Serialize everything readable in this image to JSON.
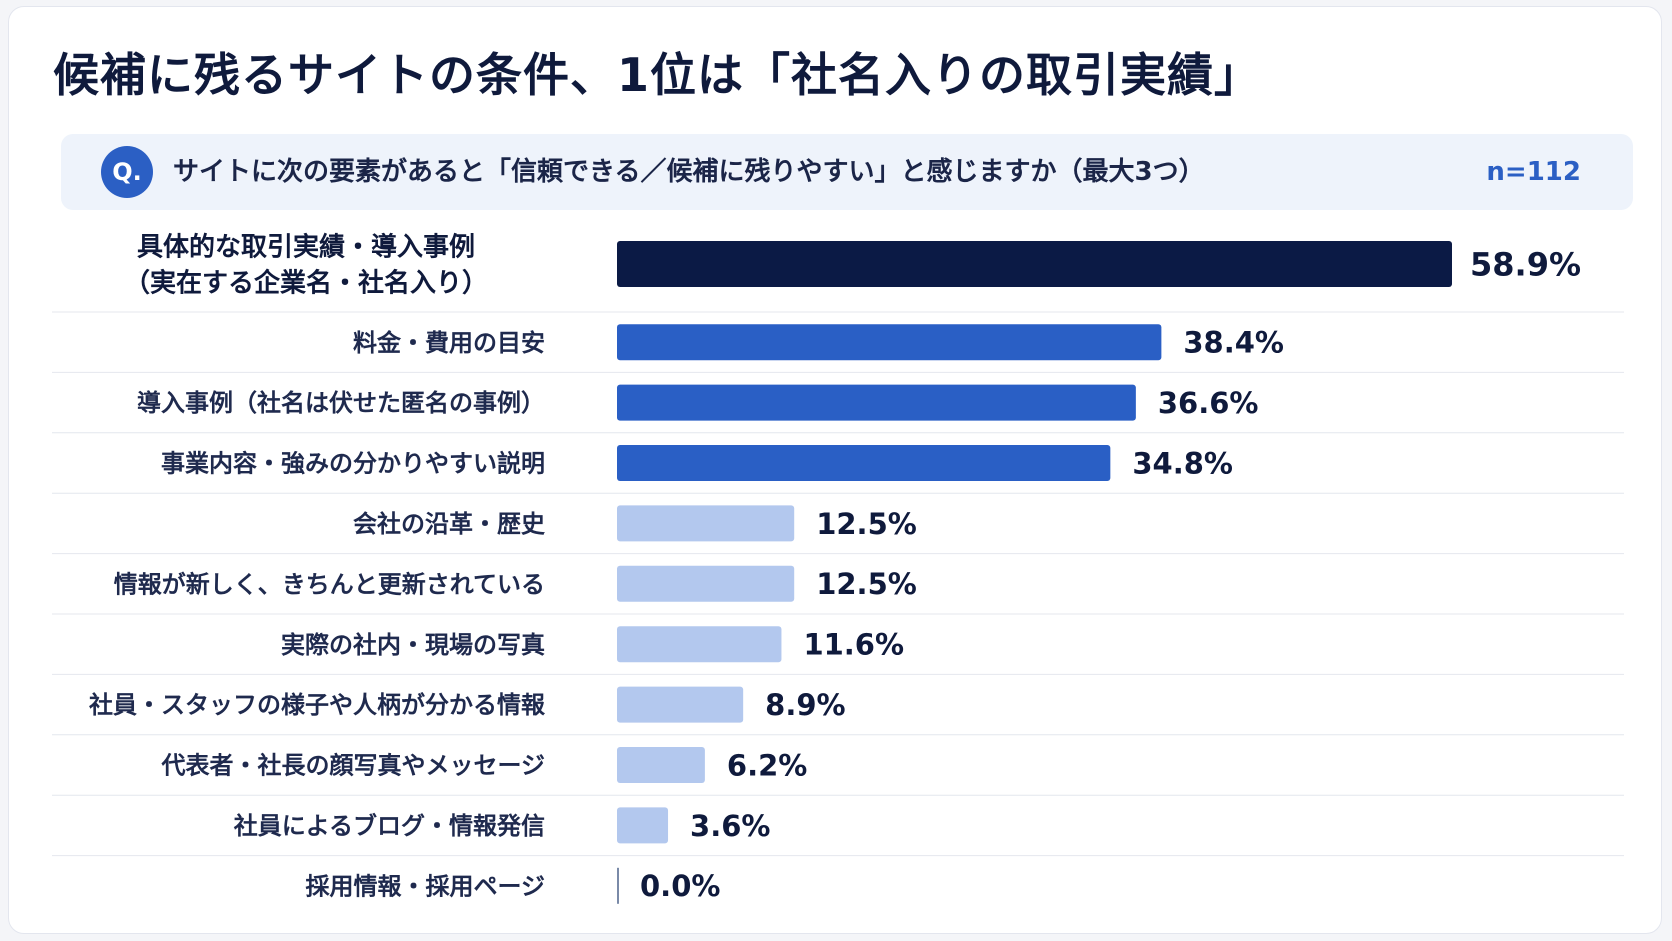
{
  "title": "候補に残るサイトの条件、1位は「社名入りの取引実績」",
  "question": {
    "badge": "Q.",
    "text": "サイトに次の要素があると「信頼できる／候補に残りやすい」と感じますか（最大3つ）",
    "n": "n=112"
  },
  "colors": {
    "top": "#0b1a45",
    "mid": "#2a5fc5",
    "low": "#b3c8ee",
    "zero": "#7a8aa8"
  },
  "chart_data": {
    "type": "bar",
    "orientation": "horizontal",
    "unit": "%",
    "xlim": [
      0,
      58.9
    ],
    "categories": [
      [
        "具体的な取引実績・導入事例",
        "（実在する企業名・社名入り）"
      ],
      [
        "料金・費用の目安"
      ],
      [
        "導入事例（社名は伏せた匿名の事例）"
      ],
      [
        "事業内容・強みの分かりやすい説明"
      ],
      [
        "会社の沿革・歴史"
      ],
      [
        "情報が新しく、きちんと更新されている"
      ],
      [
        "実際の社内・現場の写真"
      ],
      [
        "社員・スタッフの様子や人柄が分かる情報"
      ],
      [
        "代表者・社長の顔写真やメッセージ"
      ],
      [
        "社員によるブログ・情報発信"
      ],
      [
        "採用情報・採用ページ"
      ]
    ],
    "values": [
      58.9,
      38.4,
      36.6,
      34.8,
      12.5,
      12.5,
      11.6,
      8.9,
      6.2,
      3.6,
      0.0
    ],
    "labels": [
      "58.9%",
      "38.4%",
      "36.6%",
      "34.8%",
      "12.5%",
      "12.5%",
      "11.6%",
      "8.9%",
      "6.2%",
      "3.6%",
      "0.0%"
    ],
    "tiers": [
      "top",
      "mid",
      "mid",
      "mid",
      "low",
      "low",
      "low",
      "low",
      "low",
      "low",
      "low"
    ],
    "grid": false,
    "legend": "none"
  }
}
